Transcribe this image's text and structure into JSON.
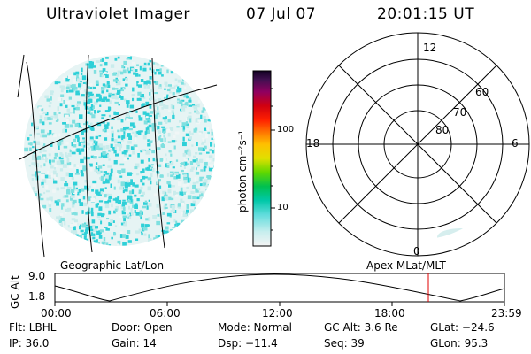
{
  "header": {
    "instrument": "Ultraviolet Imager",
    "date": "07 Jul 07",
    "time": "20:01:15 UT"
  },
  "colorbar": {
    "label": "photon cm⁻²s⁻¹",
    "ticks": [
      "100",
      "10"
    ],
    "colors": [
      "#f4f4f4",
      "#c8eeee",
      "#8fe3e3",
      "#3fd8d8",
      "#00c8b0",
      "#00c060",
      "#30d000",
      "#a0e000",
      "#e0e000",
      "#ffc000",
      "#ff8000",
      "#ff2000",
      "#d00000",
      "#b00040",
      "#900060",
      "#600060",
      "#300040",
      "#100020"
    ]
  },
  "polar": {
    "labels": {
      "noon": "12",
      "midnight": "0",
      "dawn": "6",
      "dusk": "18"
    },
    "rings": [
      "60",
      "70",
      "80"
    ]
  },
  "map": {
    "left_label": "Geographic Lat/Lon",
    "right_label": "Apex MLat/MLT"
  },
  "altplot": {
    "ylabel": "GC Alt",
    "ytick_top": "9.0",
    "ytick_bottom": "1.8",
    "xticks": [
      "00:00",
      "06:00",
      "12:00",
      "18:00",
      "23:59"
    ]
  },
  "status": {
    "flt": "Flt: LBHL",
    "ip": "IP: 36.0",
    "door": "Door: Open",
    "gain": "Gain: 14",
    "mode": "Mode: Normal",
    "dsp": "Dsp: −11.4",
    "gcalt": "GC Alt: 3.6 Re",
    "seq": "Seq: 39",
    "glat": "GLat: −24.6",
    "glon": "GLon: 95.3"
  },
  "colors": {
    "aurora_light": "#c9ecec",
    "aurora_mid": "#7fe0e0",
    "aurora_strong": "#2fd0d8",
    "marker": "#e00000"
  }
}
